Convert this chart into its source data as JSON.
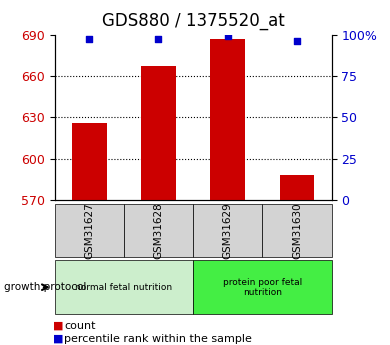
{
  "title": "GDS880 / 1375520_at",
  "samples": [
    "GSM31627",
    "GSM31628",
    "GSM31629",
    "GSM31630"
  ],
  "bar_values": [
    626,
    667,
    687,
    588
  ],
  "bar_color": "#cc0000",
  "blue_pct": [
    97,
    97.5,
    99,
    96
  ],
  "blue_color": "#0000cc",
  "ylim_left": [
    570,
    690
  ],
  "yticks_left": [
    570,
    600,
    630,
    660,
    690
  ],
  "ylim_right": [
    0,
    100
  ],
  "yticks_right": [
    0,
    25,
    50,
    75,
    100
  ],
  "ytick_labels_right": [
    "0",
    "25",
    "50",
    "75",
    "100%"
  ],
  "grid_lines": [
    600,
    630,
    660
  ],
  "groups": [
    {
      "label": "normal fetal nutrition",
      "samples": [
        0,
        1
      ],
      "color": "#cceecc"
    },
    {
      "label": "protein poor fetal\nnutrition",
      "samples": [
        2,
        3
      ],
      "color": "#44ee44"
    }
  ],
  "group_label": "growth protocol",
  "legend_count_label": "count",
  "legend_pct_label": "percentile rank within the sample",
  "bar_width": 0.5,
  "left_tick_color": "#cc0000",
  "right_tick_color": "#0000cc",
  "title_fontsize": 12,
  "tick_fontsize": 9,
  "sample_box_color": "#d3d3d3"
}
